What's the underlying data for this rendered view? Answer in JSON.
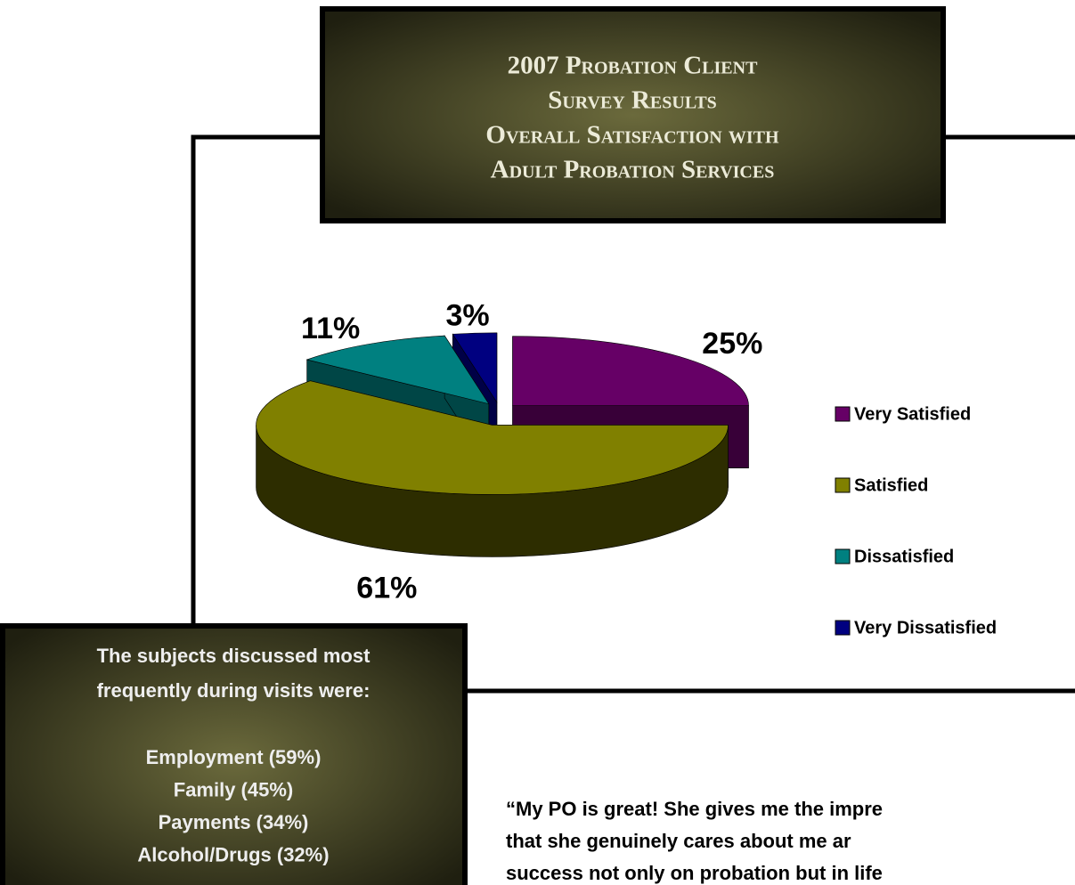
{
  "chart_data": {
    "type": "pie",
    "title": [
      "2007 Probation Client",
      "Survey Results",
      "Overall Satisfaction with",
      "Adult Probation Services"
    ],
    "categories": [
      "Very Satisfied",
      "Satisfied",
      "Dissatisfied",
      "Very Dissatisfied"
    ],
    "values": [
      25,
      61,
      11,
      3
    ],
    "value_labels": [
      "25%",
      "61%",
      "11%",
      "3%"
    ],
    "colors": [
      "#660066",
      "#808000",
      "#008080",
      "#000080"
    ],
    "legend": "right"
  },
  "sidebar": {
    "heading": "The subjects discussed most frequently during visits were:",
    "items": [
      "Employment (59%)",
      "Family (45%)",
      "Payments (34%)",
      "Alcohol/Drugs (32%)"
    ]
  },
  "quote": [
    "“My PO is great!  She gives me the impre",
    "that she genuinely cares about me ar",
    "success not only on probation but in life"
  ]
}
